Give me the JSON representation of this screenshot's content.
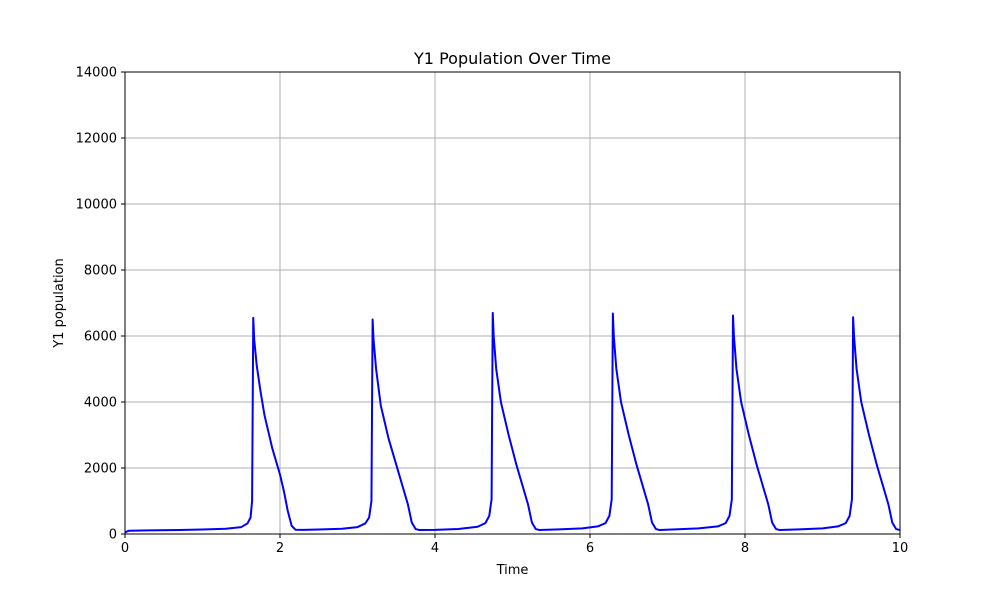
{
  "chart_data": {
    "type": "line",
    "title": "Y1 Population Over Time",
    "xlabel": "Time",
    "ylabel": "Y1 population",
    "xlim": [
      0,
      10
    ],
    "ylim": [
      0,
      14000
    ],
    "xticks": [
      0,
      2,
      4,
      6,
      8,
      10
    ],
    "yticks": [
      0,
      2000,
      4000,
      6000,
      8000,
      10000,
      12000,
      14000
    ],
    "grid": true,
    "series": [
      {
        "color": "#0000ff",
        "x": [
          0,
          0.05,
          0.3,
          0.7,
          1.0,
          1.3,
          1.5,
          1.58,
          1.62,
          1.64,
          1.655,
          1.667,
          1.7,
          1.75,
          1.8,
          1.9,
          2.0,
          2.05,
          2.1,
          2.15,
          2.2,
          2.3,
          2.5,
          2.8,
          3.0,
          3.1,
          3.15,
          3.18,
          3.195,
          3.207,
          3.24,
          3.3,
          3.4,
          3.5,
          3.6,
          3.65,
          3.7,
          3.75,
          3.8,
          4.0,
          4.3,
          4.55,
          4.65,
          4.7,
          4.73,
          4.745,
          4.757,
          4.79,
          4.85,
          4.95,
          5.05,
          5.15,
          5.2,
          5.25,
          5.3,
          5.35,
          5.6,
          5.9,
          6.1,
          6.2,
          6.25,
          6.28,
          6.295,
          6.307,
          6.34,
          6.4,
          6.5,
          6.6,
          6.7,
          6.75,
          6.8,
          6.85,
          6.9,
          7.1,
          7.4,
          7.65,
          7.75,
          7.8,
          7.83,
          7.845,
          7.857,
          7.89,
          7.95,
          8.05,
          8.15,
          8.25,
          8.3,
          8.35,
          8.4,
          8.45,
          8.7,
          9.0,
          9.2,
          9.3,
          9.35,
          9.38,
          9.395,
          9.407,
          9.44,
          9.5,
          9.6,
          9.7,
          9.8,
          9.85,
          9.9,
          9.95,
          10.0
        ],
        "y": [
          50,
          100,
          110,
          120,
          135,
          160,
          210,
          320,
          500,
          1000,
          6550,
          5900,
          5100,
          4300,
          3600,
          2600,
          1800,
          1300,
          700,
          250,
          130,
          125,
          135,
          160,
          210,
          320,
          500,
          1000,
          6500,
          5900,
          5000,
          3900,
          2900,
          2100,
          1300,
          900,
          350,
          150,
          120,
          125,
          150,
          220,
          330,
          550,
          1050,
          6700,
          6000,
          5000,
          4000,
          3000,
          2100,
          1300,
          900,
          350,
          150,
          120,
          140,
          170,
          230,
          330,
          550,
          1050,
          6680,
          6000,
          5000,
          4000,
          3000,
          2100,
          1300,
          900,
          350,
          150,
          120,
          140,
          170,
          230,
          330,
          550,
          1050,
          6620,
          6000,
          5000,
          4000,
          3000,
          2100,
          1300,
          900,
          350,
          150,
          120,
          140,
          170,
          230,
          330,
          550,
          1050,
          6570,
          6000,
          5000,
          4000,
          3000,
          2100,
          1300,
          900,
          350,
          150,
          120
        ]
      }
    ]
  }
}
